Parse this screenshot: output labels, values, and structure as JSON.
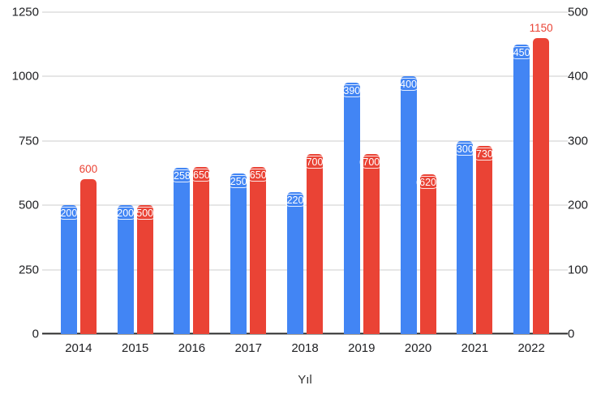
{
  "chart_data": {
    "type": "bar",
    "title": "",
    "xlabel": "Yıl",
    "ylabel": "",
    "categories": [
      "2014",
      "2015",
      "2016",
      "2017",
      "2018",
      "2019",
      "2020",
      "2021",
      "2022"
    ],
    "series": [
      {
        "name": "blue-series",
        "color": "#4285F4",
        "axis": "right",
        "values": [
          200,
          200,
          258,
          250,
          220,
          390,
          400,
          300,
          450
        ],
        "outside_label_indices": []
      },
      {
        "name": "red-series",
        "color": "#EA4335",
        "axis": "left",
        "values": [
          600,
          500,
          650,
          650,
          700,
          700,
          620,
          730,
          1150
        ],
        "outside_label_indices": [
          0,
          8
        ]
      }
    ],
    "axes": {
      "left": {
        "min": 0,
        "max": 1250,
        "ticks": [
          0,
          250,
          500,
          750,
          1000,
          1250
        ]
      },
      "right": {
        "min": 0,
        "max": 500,
        "ticks": [
          0,
          100,
          200,
          300,
          400,
          500
        ]
      }
    },
    "legend": "none",
    "grid": true,
    "background": "#ffffff",
    "gridline_color": "#cccccc",
    "axis_line_color": "#2b2b2b",
    "tick_text_color": "#202124",
    "inside_label_text_color": "#ffffff"
  }
}
